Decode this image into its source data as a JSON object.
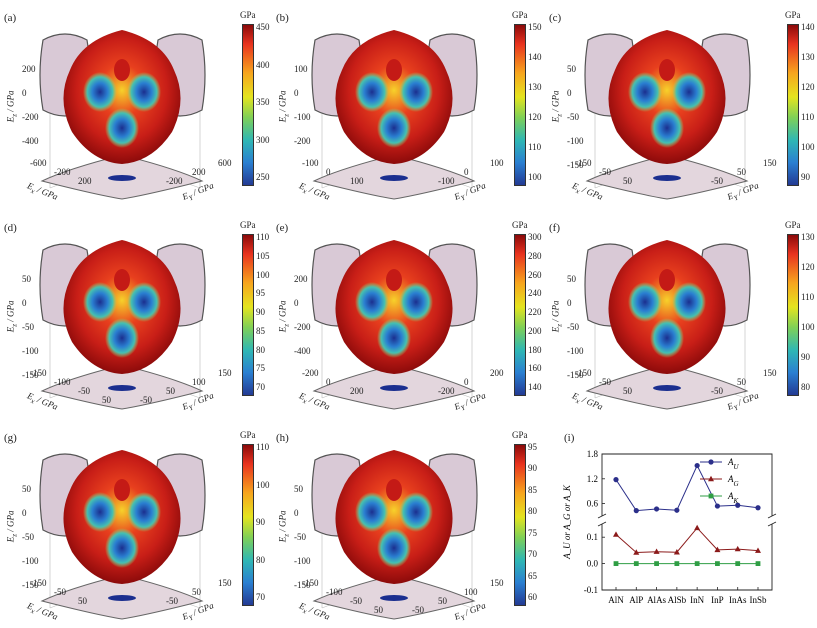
{
  "panels": [
    {
      "label": "(a)",
      "unit": "GPa",
      "cbar": [
        "450",
        "400",
        "350",
        "300",
        "250"
      ],
      "z_ticks": [
        "200",
        "0",
        "-200",
        "-400"
      ],
      "x_ticks": [
        "-600",
        "-200",
        "200"
      ],
      "y_ticks": [
        "600",
        "200",
        "-200"
      ],
      "xlab": "E_x / GPa",
      "ylab": "E_Y / GPa",
      "zlab": "E_z / GPa"
    },
    {
      "label": "(b)",
      "unit": "GPa",
      "cbar": [
        "150",
        "140",
        "130",
        "120",
        "110",
        "100"
      ],
      "z_ticks": [
        "100",
        "0",
        "-100",
        "-200"
      ],
      "x_ticks": [
        "-100",
        "0",
        "100"
      ],
      "y_ticks": [
        "100",
        "0",
        "-100"
      ],
      "xlab": "E_x / GPa",
      "ylab": "E_Y / GPa",
      "zlab": "E_z / GPa"
    },
    {
      "label": "(c)",
      "unit": "GPa",
      "cbar": [
        "140",
        "130",
        "120",
        "110",
        "100",
        "90"
      ],
      "z_ticks": [
        "50",
        "0",
        "-50",
        "-100",
        "-150"
      ],
      "x_ticks": [
        "-150",
        "-50",
        "50"
      ],
      "y_ticks": [
        "150",
        "50",
        "-50"
      ],
      "xlab": "E_x / GPa",
      "ylab": "E_Y / GPa",
      "zlab": "E_z / GPa"
    },
    {
      "label": "(d)",
      "unit": "GPa",
      "cbar": [
        "110",
        "105",
        "100",
        "95",
        "90",
        "85",
        "80",
        "75",
        "70"
      ],
      "z_ticks": [
        "50",
        "0",
        "-50",
        "-100",
        "-150"
      ],
      "x_ticks": [
        "-150",
        "-100",
        "-50",
        "50"
      ],
      "y_ticks": [
        "150",
        "100",
        "50",
        "-50"
      ],
      "xlab": "E_x / GPa",
      "ylab": "E_Y / GPa",
      "zlab": "E_z / GPa"
    },
    {
      "label": "(e)",
      "unit": "GPa",
      "cbar": [
        "300",
        "280",
        "260",
        "240",
        "220",
        "200",
        "180",
        "160",
        "140"
      ],
      "z_ticks": [
        "200",
        "0",
        "-200",
        "-400"
      ],
      "x_ticks": [
        "-200",
        "0",
        "200"
      ],
      "y_ticks": [
        "200",
        "0",
        "-200"
      ],
      "xlab": "E_x / GPa",
      "ylab": "E_Y / GPa",
      "zlab": "E_z / GPa"
    },
    {
      "label": "(f)",
      "unit": "GPa",
      "cbar": [
        "130",
        "120",
        "110",
        "100",
        "90",
        "80"
      ],
      "z_ticks": [
        "50",
        "0",
        "-50",
        "-100",
        "-150"
      ],
      "x_ticks": [
        "-150",
        "-50",
        "50"
      ],
      "y_ticks": [
        "150",
        "50",
        "-50"
      ],
      "xlab": "E_x / GPa",
      "ylab": "E_Y / GPa",
      "zlab": "E_z / GPa"
    },
    {
      "label": "(g)",
      "unit": "GPa",
      "cbar": [
        "110",
        "100",
        "90",
        "80",
        "70"
      ],
      "z_ticks": [
        "50",
        "0",
        "-50",
        "-100",
        "-150"
      ],
      "x_ticks": [
        "-150",
        "-50",
        "50"
      ],
      "y_ticks": [
        "150",
        "50",
        "-50"
      ],
      "xlab": "E_x / GPa",
      "ylab": "E_Y / GPa",
      "zlab": "E_z / GPa"
    },
    {
      "label": "(h)",
      "unit": "GPa",
      "cbar": [
        "95",
        "90",
        "85",
        "80",
        "75",
        "70",
        "65",
        "60"
      ],
      "z_ticks": [
        "50",
        "0",
        "-50",
        "-100",
        "-150"
      ],
      "x_ticks": [
        "-150",
        "-100",
        "-50",
        "50"
      ],
      "y_ticks": [
        "150",
        "100",
        "50",
        "-50"
      ],
      "xlab": "E_x / GPa",
      "ylab": "E_Y / GPa",
      "zlab": "E_z / GPa"
    }
  ],
  "chart_data": {
    "label": "(i)",
    "type": "line",
    "categories": [
      "AlN",
      "AlP",
      "AlAs",
      "AlSb",
      "InN",
      "InP",
      "InAs",
      "InSb"
    ],
    "ylabel": "A_U or A_G or A_K",
    "y_ticks_upper": [
      "1.8",
      "1.2",
      "0.6"
    ],
    "y_ticks_lower": [
      "0.1",
      "0.0",
      "-0.1"
    ],
    "series": [
      {
        "name": "A_U",
        "color": "#2b2f8a",
        "marker": "circle",
        "values": [
          1.18,
          0.43,
          0.47,
          0.44,
          1.52,
          0.54,
          0.56,
          0.5
        ]
      },
      {
        "name": "A_G",
        "color": "#8b1a1a",
        "marker": "triangle",
        "values": [
          0.11,
          0.042,
          0.045,
          0.043,
          0.135,
          0.052,
          0.055,
          0.049
        ]
      },
      {
        "name": "A_K",
        "color": "#2f9e44",
        "marker": "square",
        "values": [
          0.0,
          0.0,
          0.0,
          0.0,
          0.0,
          0.0,
          0.0,
          0.0
        ]
      }
    ],
    "ylim_upper": [
      0.3,
      1.8
    ],
    "ylim_lower": [
      -0.1,
      0.15
    ],
    "legend": "top-right"
  }
}
